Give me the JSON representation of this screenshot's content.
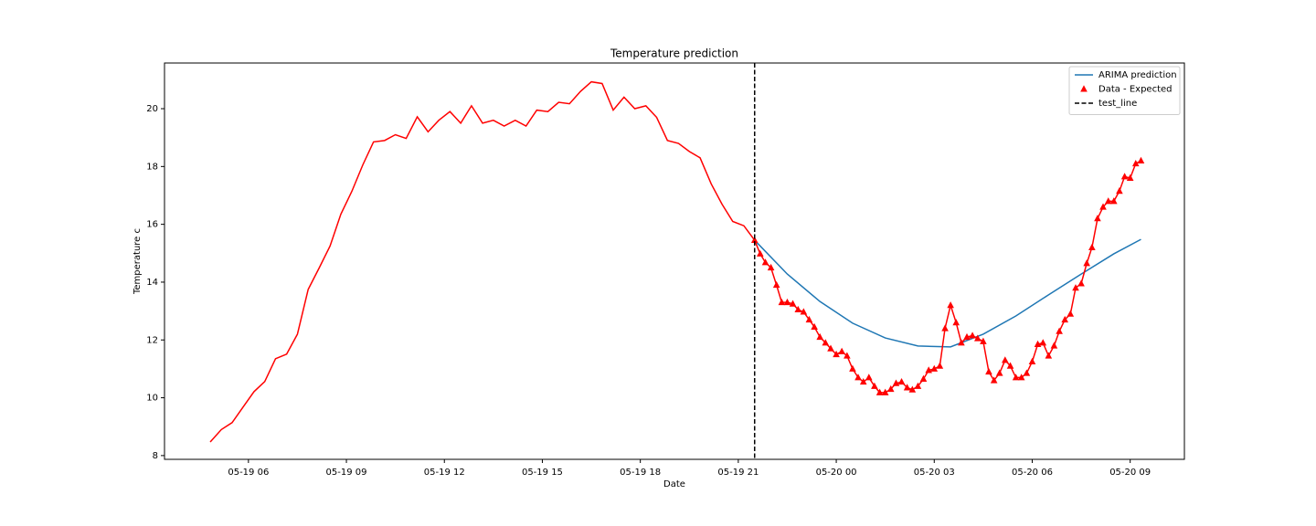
{
  "chart_data": {
    "type": "line",
    "title": "Temperature prediction",
    "x_label": "Date",
    "y_label": "Temperature c",
    "xlim": [
      3.43,
      34.66
    ],
    "ylim": [
      7.87,
      21.58
    ],
    "xticks": [
      {
        "value": 6,
        "label": "05-19 06"
      },
      {
        "value": 9,
        "label": "05-19 09"
      },
      {
        "value": 12,
        "label": "05-19 12"
      },
      {
        "value": 15,
        "label": "05-19 15"
      },
      {
        "value": 18,
        "label": "05-19 18"
      },
      {
        "value": 21,
        "label": "05-19 21"
      },
      {
        "value": 24,
        "label": "05-20 00"
      },
      {
        "value": 27,
        "label": "05-20 03"
      },
      {
        "value": 30,
        "label": "05-20 06"
      },
      {
        "value": 33,
        "label": "05-20 09"
      }
    ],
    "yticks": [
      8,
      10,
      12,
      14,
      16,
      18,
      20
    ],
    "grid": false,
    "legend": "upper right",
    "series": [
      {
        "color": "#ff0000",
        "x": [
          4.83,
          5.17,
          5.5,
          5.83,
          6.17,
          6.5,
          6.83,
          7.17,
          7.5,
          7.83,
          8.17,
          8.5,
          8.83,
          9.17,
          9.5,
          9.83,
          10.17,
          10.5,
          10.83,
          11.17,
          11.5,
          11.83,
          12.17,
          12.5,
          12.83,
          13.17,
          13.5,
          13.83,
          14.17,
          14.5,
          14.83,
          15.17,
          15.5,
          15.83,
          16.17,
          16.5,
          16.83,
          17.17,
          17.5,
          17.83,
          18.17,
          18.5,
          18.83,
          19.17,
          19.5,
          19.83,
          20.17,
          20.5,
          20.83,
          21.17,
          21.5
        ],
        "values": [
          8.47,
          8.9,
          9.14,
          9.67,
          10.21,
          10.56,
          11.35,
          11.51,
          12.2,
          13.75,
          14.5,
          15.25,
          16.35,
          17.15,
          18.05,
          18.85,
          18.9,
          19.1,
          18.97,
          19.72,
          19.2,
          19.6,
          19.9,
          19.5,
          20.1,
          19.5,
          19.6,
          19.4,
          19.6,
          19.4,
          19.95,
          19.9,
          20.22,
          20.17,
          20.6,
          20.93,
          20.87,
          19.95,
          20.4,
          20.0,
          20.1,
          19.7,
          18.9,
          18.8,
          18.52,
          18.3,
          17.4,
          16.7,
          16.1,
          15.95,
          15.45
        ]
      },
      {
        "name": "ARIMA prediction",
        "color": "#1f77b4",
        "x": [
          21.5,
          22.5,
          23.5,
          24.5,
          25.5,
          26.5,
          27.5,
          28.5,
          29.5,
          30.5,
          31.5,
          32.5,
          33.33
        ],
        "values": [
          15.45,
          14.28,
          13.33,
          12.58,
          12.07,
          11.79,
          11.76,
          12.2,
          12.83,
          13.56,
          14.28,
          14.98,
          15.48
        ]
      },
      {
        "name": "Data - Expected",
        "color": "#ff0000",
        "marker": "triangle",
        "x": [
          21.5,
          21.67,
          21.83,
          22,
          22.17,
          22.33,
          22.5,
          22.67,
          22.83,
          23,
          23.17,
          23.33,
          23.5,
          23.67,
          23.83,
          24,
          24.17,
          24.33,
          24.5,
          24.67,
          24.83,
          25,
          25.17,
          25.33,
          25.5,
          25.67,
          25.83,
          26,
          26.17,
          26.33,
          26.5,
          26.67,
          26.83,
          27,
          27.17,
          27.33,
          27.5,
          27.67,
          27.83,
          28,
          28.17,
          28.33,
          28.5,
          28.67,
          28.83,
          29,
          29.17,
          29.33,
          29.5,
          29.67,
          29.83,
          30,
          30.17,
          30.33,
          30.5,
          30.67,
          30.83,
          31,
          31.17,
          31.33,
          31.5,
          31.67,
          31.83,
          32,
          32.17,
          32.33,
          32.5,
          32.67,
          32.83,
          33,
          33.17,
          33.33
        ],
        "values": [
          15.45,
          14.98,
          14.68,
          14.5,
          13.9,
          13.3,
          13.3,
          13.25,
          13.05,
          12.97,
          12.7,
          12.45,
          12.1,
          11.9,
          11.7,
          11.5,
          11.6,
          11.45,
          11.0,
          10.7,
          10.55,
          10.7,
          10.4,
          10.18,
          10.18,
          10.3,
          10.5,
          10.55,
          10.35,
          10.28,
          10.4,
          10.65,
          10.95,
          11.0,
          11.1,
          12.4,
          13.2,
          12.6,
          11.9,
          12.1,
          12.15,
          12.05,
          11.95,
          10.9,
          10.6,
          10.85,
          11.3,
          11.1,
          10.7,
          10.7,
          10.85,
          11.25,
          11.85,
          11.9,
          11.45,
          11.8,
          12.3,
          12.7,
          12.9,
          13.8,
          13.95,
          14.65,
          15.2,
          16.2,
          16.6,
          16.8,
          16.8,
          17.15,
          17.65,
          17.6,
          18.1,
          18.2
        ]
      }
    ],
    "vlines": [
      {
        "name": "test_line",
        "x": 21.5,
        "color": "#000000",
        "dash": true
      }
    ]
  }
}
